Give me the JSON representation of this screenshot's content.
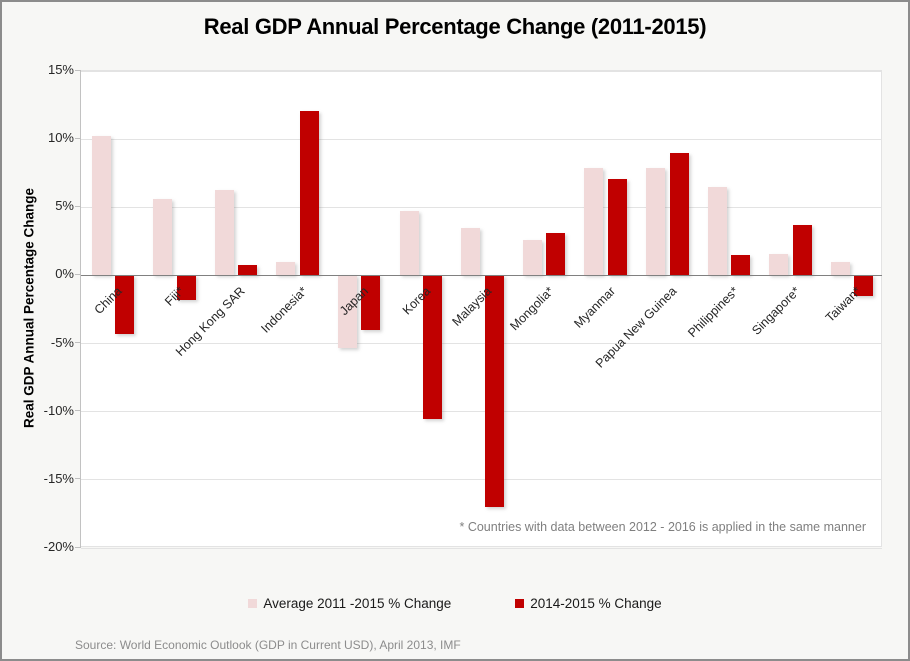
{
  "title": "Real GDP Annual Percentage Change (2011-2015)",
  "y_axis_title": "Real GDP Annual Percentage Change",
  "footnote": "* Countries with data between 2012 - 2016 is applied in the same manner",
  "source": "Source: World Economic Outlook (GDP in Current USD), April 2013, IMF",
  "colors": {
    "background": "#F7F7F5",
    "plot_background": "#FFFFFF",
    "gridline": "#E3E3E3",
    "zero_line": "#808080",
    "axis_line": "#C2C2C2",
    "page_border": "#8C8C8C",
    "series_average": "#F1D9D9",
    "series_recent": "#C00000",
    "muted_text": "#7F7F7F",
    "source_text": "#8C8C8C"
  },
  "chart_data": {
    "type": "bar",
    "title": "Real GDP Annual Percentage Change (2011-2015)",
    "xlabel": "",
    "ylabel": "Real GDP Annual Percentage Change",
    "ylim": [
      -20,
      15
    ],
    "y_ticks": [
      15,
      10,
      5,
      0,
      -5,
      -10,
      -15,
      -20
    ],
    "y_tick_labels": [
      "15%",
      "10%",
      "5%",
      "0%",
      "-5%",
      "-10%",
      "-15%",
      "-20%"
    ],
    "grid": true,
    "legend_position": "bottom",
    "categories": [
      "China",
      "Fiji*",
      "Hong Kong SAR",
      "Indonesia*",
      "Japan",
      "Korea",
      "Malaysia",
      "Mongolia*",
      "Myanmar",
      "Papua New Guinea",
      "Philippines*",
      "Singapore*",
      "Taiwan*"
    ],
    "series": [
      {
        "key": "average",
        "name": "Average 2011 -2015 % Change",
        "color": "#F1D9D9",
        "values": [
          10.2,
          5.6,
          6.3,
          1.0,
          -5.3,
          4.7,
          3.5,
          2.6,
          7.9,
          7.9,
          6.5,
          1.6,
          1.0
        ]
      },
      {
        "key": "recent",
        "name": "2014-2015 % Change",
        "color": "#C00000",
        "values": [
          -4.3,
          -1.8,
          0.8,
          12.1,
          -4.0,
          -10.5,
          -17.0,
          3.1,
          7.1,
          9.0,
          1.5,
          3.7,
          -1.5
        ]
      }
    ],
    "annotation": "* Countries with data between 2012 - 2016 is applied in the same manner"
  }
}
